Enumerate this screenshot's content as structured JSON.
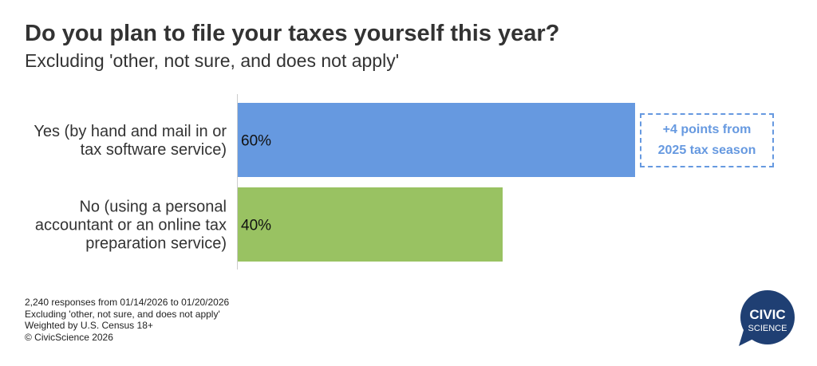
{
  "chart_data": {
    "type": "bar",
    "orientation": "horizontal",
    "title": "Do you plan to file your taxes yourself this year?",
    "subtitle": "Excluding 'other, not sure, and does not apply'",
    "categories": [
      [
        "Yes (by hand and mail in or",
        "tax software service)"
      ],
      [
        "No (using a personal",
        "accountant or an online tax",
        "preparation service)"
      ]
    ],
    "values": [
      60,
      40
    ],
    "value_labels": [
      "60%",
      "40%"
    ],
    "colors": [
      "#6699e0",
      "#99c262"
    ],
    "xlim": [
      0,
      100
    ],
    "grid": false,
    "legend": "none"
  },
  "callout": {
    "lines": [
      "+4 points from",
      "2025 tax season"
    ],
    "color": "#6699e0"
  },
  "footnotes": [
    "2,240 responses from 01/14/2026 to 01/20/2026",
    "Excluding 'other, not sure, and does not apply'",
    "Weighted by U.S. Census 18+",
    "© CivicScience 2026"
  ],
  "logo": {
    "line1": "CIVIC",
    "line2": "SCIENCE",
    "color": "#1f3f73"
  }
}
